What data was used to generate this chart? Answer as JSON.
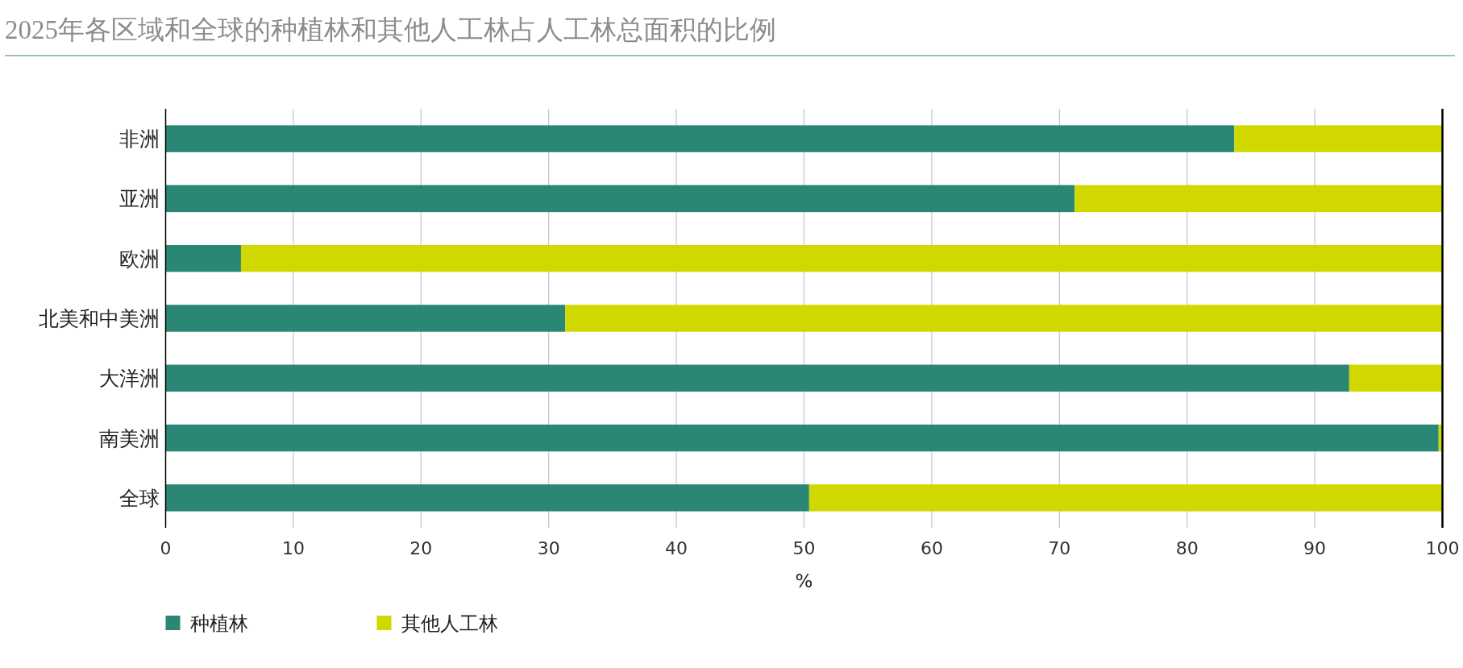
{
  "chart_data": {
    "type": "bar",
    "orientation": "horizontal",
    "stacked": true,
    "title": "2025年各区域和全球的种植林和其他人工林占人工林总面积的比例",
    "categories": [
      "非洲",
      "亚洲",
      "欧洲",
      "北美和中美洲",
      "大洋洲",
      "南美洲",
      "全球"
    ],
    "series": [
      {
        "name": "种植林",
        "color": "#2a8775",
        "values": [
          83.7,
          71.2,
          5.9,
          31.3,
          92.7,
          99.7,
          50.4
        ]
      },
      {
        "name": "其他人工林",
        "color": "#d0d800",
        "values": [
          16.3,
          28.8,
          94.1,
          68.7,
          7.3,
          0.3,
          49.6
        ]
      }
    ],
    "xlabel": "%",
    "xlim": [
      0,
      100
    ],
    "xticks": [
      0,
      10,
      20,
      30,
      40,
      50,
      60,
      70,
      80,
      90,
      100
    ],
    "grid": "x",
    "legend": "bottom"
  }
}
